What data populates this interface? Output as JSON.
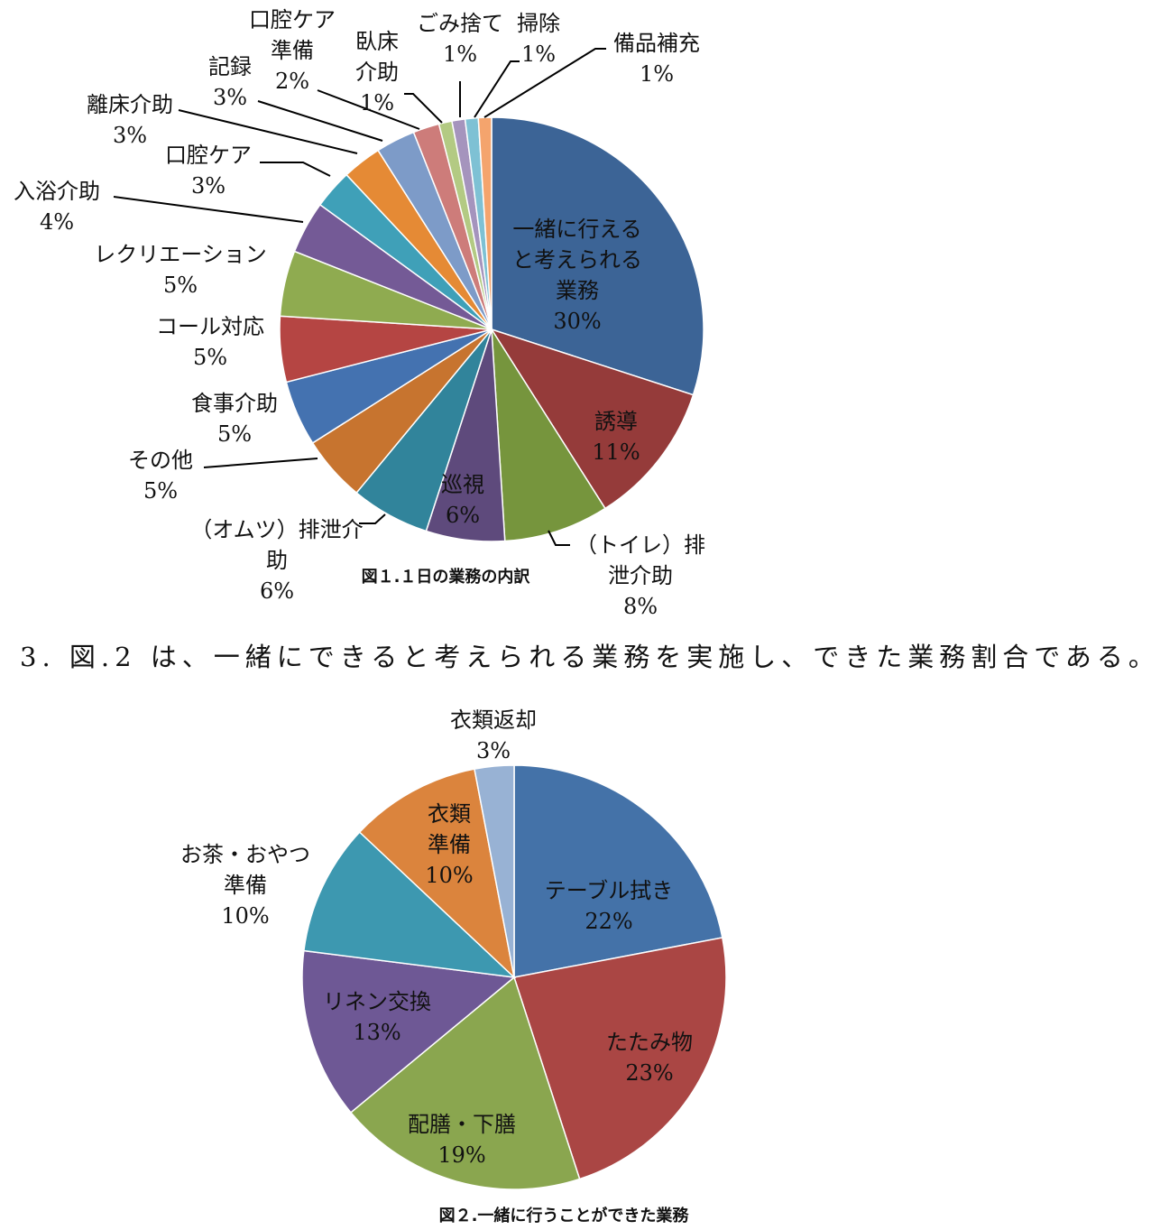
{
  "chart_data": [
    {
      "type": "pie",
      "title": "図１.１日の業務の内訳",
      "slices": [
        {
          "label": "一緒に行えると考えられる業務",
          "lines": [
            "一緒に行える",
            "と考えられる",
            "業務",
            "30%"
          ],
          "value": 30,
          "color": "#3c6496"
        },
        {
          "label": "誘導",
          "lines": [
            "誘導",
            "11%"
          ],
          "value": 11,
          "color": "#953b3a"
        },
        {
          "label": "（トイレ）排泄介助",
          "lines": [
            "（トイレ）排",
            "泄介助",
            "8%"
          ],
          "value": 8,
          "color": "#76953d"
        },
        {
          "label": "巡視",
          "lines": [
            "巡視",
            "6%"
          ],
          "value": 6,
          "color": "#5e4a7c"
        },
        {
          "label": "（オムツ）排泄介助",
          "lines": [
            "（オムツ）排泄介",
            "助",
            "6%"
          ],
          "value": 6,
          "color": "#31849b"
        },
        {
          "label": "その他",
          "lines": [
            "その他",
            "5%"
          ],
          "value": 5,
          "color": "#c7742f"
        },
        {
          "label": "食事介助",
          "lines": [
            "食事介助",
            "5%"
          ],
          "value": 5,
          "color": "#4472b0"
        },
        {
          "label": "コール対応",
          "lines": [
            "コール対応",
            "5%"
          ],
          "value": 5,
          "color": "#b54543"
        },
        {
          "label": "レクリエーション",
          "lines": [
            "レクリエーション",
            "5%"
          ],
          "value": 5,
          "color": "#8fab50"
        },
        {
          "label": "入浴介助",
          "lines": [
            "入浴介助",
            "4%"
          ],
          "value": 4,
          "color": "#745a96"
        },
        {
          "label": "口腔ケア",
          "lines": [
            "口腔ケア",
            "3%"
          ],
          "value": 3,
          "color": "#3fa0b8"
        },
        {
          "label": "離床介助",
          "lines": [
            "離床介助",
            "3%"
          ],
          "value": 3,
          "color": "#e58a35"
        },
        {
          "label": "記録",
          "lines": [
            "記録",
            "3%"
          ],
          "value": 3,
          "color": "#7d9bc8"
        },
        {
          "label": "口腔ケア準備",
          "lines": [
            "口腔ケア",
            "準備",
            "2%"
          ],
          "value": 2,
          "color": "#cd7c7a"
        },
        {
          "label": "臥床介助",
          "lines": [
            "臥床",
            "介助",
            "1%"
          ],
          "value": 1,
          "color": "#b3ca83"
        },
        {
          "label": "ごみ捨て",
          "lines": [
            "ごみ捨て",
            "1%"
          ],
          "value": 1,
          "color": "#a594bd"
        },
        {
          "label": "掃除",
          "lines": [
            "掃除",
            "1%"
          ],
          "value": 1,
          "color": "#7ec1d4"
        },
        {
          "label": "備品補充",
          "lines": [
            "備品補充",
            "1%"
          ],
          "value": 1,
          "color": "#f4a46d"
        }
      ]
    },
    {
      "type": "pie",
      "title": "図２.一緒に行うことができた業務",
      "slices": [
        {
          "label": "テーブル拭き",
          "lines": [
            "テーブル拭き",
            "22%"
          ],
          "value": 22,
          "color": "#4472a8"
        },
        {
          "label": "たたみ物",
          "lines": [
            "たたみ物",
            "23%"
          ],
          "value": 23,
          "color": "#aa4644"
        },
        {
          "label": "配膳・下膳",
          "lines": [
            "配膳・下膳",
            "19%"
          ],
          "value": 19,
          "color": "#8aa64f"
        },
        {
          "label": "リネン交換",
          "lines": [
            "リネン交換",
            "13%"
          ],
          "value": 13,
          "color": "#6e5895"
        },
        {
          "label": "お茶・おやつ準備",
          "lines": [
            "お茶・おやつ",
            "準備",
            "10%"
          ],
          "value": 10,
          "color": "#3d98b0"
        },
        {
          "label": "衣類準備",
          "lines": [
            "衣類",
            "準備",
            "10%"
          ],
          "value": 10,
          "color": "#db843d"
        },
        {
          "label": "衣類返却",
          "lines": [
            "衣類返却",
            "3%"
          ],
          "value": 3,
          "color": "#98b2d4"
        }
      ]
    }
  ],
  "sentence": "3. 図.2 は、一緒にできると考えられる業務を実施し、できた業務割合である。"
}
